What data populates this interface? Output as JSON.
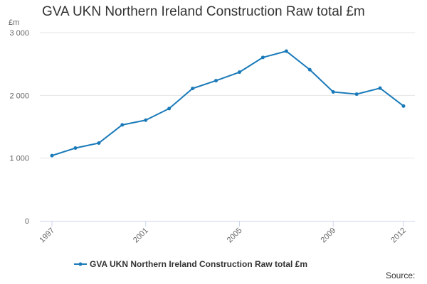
{
  "chart_data": {
    "type": "line",
    "title": "GVA UKN Northern Ireland Construction Raw total £m",
    "ylabel": "£m",
    "xlabel": "",
    "ylim": [
      0,
      3000
    ],
    "y_ticks": [
      {
        "value": 0,
        "label": "0"
      },
      {
        "value": 1000,
        "label": "1 000"
      },
      {
        "value": 2000,
        "label": "2 000"
      },
      {
        "value": 3000,
        "label": "3 000"
      }
    ],
    "x_ticks": [
      {
        "value": 1997,
        "label": "1997"
      },
      {
        "value": 2001,
        "label": "2001"
      },
      {
        "value": 2005,
        "label": "2005"
      },
      {
        "value": 2009,
        "label": "2009"
      },
      {
        "value": 2012,
        "label": "2012"
      }
    ],
    "xlim": [
      1997,
      2012
    ],
    "grid": true,
    "legend_position": "bottom",
    "color": "#1a7ab9",
    "series": [
      {
        "name": "GVA UKN Northern Ireland Construction Raw total £m",
        "x": [
          1997,
          1998,
          1999,
          2000,
          2001,
          2002,
          2003,
          2004,
          2005,
          2006,
          2007,
          2008,
          2009,
          2010,
          2011,
          2012
        ],
        "values": [
          1040,
          1160,
          1240,
          1530,
          1605,
          1790,
          2110,
          2235,
          2370,
          2605,
          2705,
          2410,
          2055,
          2020,
          2115,
          1830
        ]
      }
    ]
  },
  "source_label": "Source:"
}
